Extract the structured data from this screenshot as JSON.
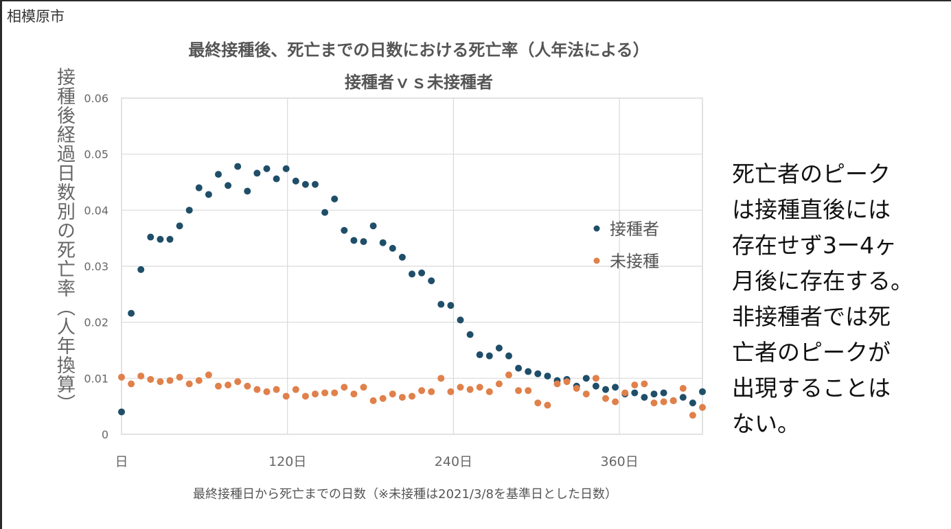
{
  "source_label": "相模原市",
  "note": "死亡者のピーク\nは接種直後には\n存在せず3ー4ヶ\n月後に存在する。\n非接種者では死\n亡者のピークが\n出現することは\nない。",
  "colors": {
    "vaccinated": "#1f4e69",
    "unvaccinated": "#e0804a",
    "grid": "#d9d9d9",
    "axis_text": "#666666"
  },
  "chart_data": {
    "type": "scatter",
    "title": "最終接種後、死亡までの日数における死亡率（人年法による）",
    "subtitle": "接種者ｖｓ未接種者",
    "ylabel": "接種後経過日数別の死亡率（人年換算）",
    "xlabel": "最終接種日から死亡までの日数（※未接種は2021/3/8を基準日とした日数）",
    "xlim": [
      0,
      420
    ],
    "ylim": [
      0,
      0.06
    ],
    "xticks": [
      {
        "value": 0,
        "label": "日"
      },
      {
        "value": 120,
        "label": "120日"
      },
      {
        "value": 240,
        "label": "240日"
      },
      {
        "value": 360,
        "label": "360日"
      }
    ],
    "yticks": [
      {
        "value": 0,
        "label": "0"
      },
      {
        "value": 0.01,
        "label": "0.01"
      },
      {
        "value": 0.02,
        "label": "0.02"
      },
      {
        "value": 0.03,
        "label": "0.03"
      },
      {
        "value": 0.04,
        "label": "0.04"
      },
      {
        "value": 0.05,
        "label": "0.05"
      },
      {
        "value": 0.06,
        "label": "0.06"
      }
    ],
    "grid": true,
    "legend_position": "right",
    "series": [
      {
        "name": "接種者",
        "color": "#1f4e69",
        "x": [
          0,
          7,
          14,
          21,
          28,
          35,
          42,
          49,
          56,
          63,
          70,
          77,
          84,
          91,
          98,
          105,
          112,
          119,
          126,
          133,
          140,
          147,
          154,
          161,
          168,
          175,
          182,
          189,
          196,
          203,
          210,
          217,
          224,
          231,
          238,
          245,
          252,
          259,
          266,
          273,
          280,
          287,
          294,
          301,
          308,
          315,
          322,
          329,
          336,
          343,
          350,
          357,
          364,
          371,
          378,
          385,
          392,
          399,
          406,
          413,
          420
        ],
        "y": [
          0.004,
          0.0216,
          0.0294,
          0.0352,
          0.0348,
          0.0348,
          0.0372,
          0.04,
          0.044,
          0.0428,
          0.0464,
          0.0444,
          0.0478,
          0.0434,
          0.0466,
          0.0474,
          0.0456,
          0.0474,
          0.0452,
          0.0446,
          0.0446,
          0.0396,
          0.042,
          0.0364,
          0.0346,
          0.0344,
          0.0372,
          0.0342,
          0.0332,
          0.0316,
          0.0286,
          0.0288,
          0.0274,
          0.0232,
          0.023,
          0.0204,
          0.0178,
          0.0142,
          0.014,
          0.0154,
          0.014,
          0.0118,
          0.0112,
          0.0108,
          0.0104,
          0.0096,
          0.0098,
          0.0086,
          0.01,
          0.0086,
          0.008,
          0.0084,
          0.0072,
          0.0074,
          0.0066,
          0.0072,
          0.0074,
          0.006,
          0.0066,
          0.0056,
          0.0076
        ]
      },
      {
        "name": "未接種",
        "color": "#e0804a",
        "x": [
          0,
          7,
          14,
          21,
          28,
          35,
          42,
          49,
          56,
          63,
          70,
          77,
          84,
          91,
          98,
          105,
          112,
          119,
          126,
          133,
          140,
          147,
          154,
          161,
          168,
          175,
          182,
          189,
          196,
          203,
          210,
          217,
          224,
          231,
          238,
          245,
          252,
          259,
          266,
          273,
          280,
          287,
          294,
          301,
          308,
          315,
          322,
          329,
          336,
          343,
          350,
          357,
          364,
          371,
          378,
          385,
          392,
          399,
          406,
          413,
          420
        ],
        "y": [
          0.0102,
          0.009,
          0.0104,
          0.0098,
          0.0094,
          0.0096,
          0.0102,
          0.009,
          0.0096,
          0.0106,
          0.0086,
          0.0088,
          0.0094,
          0.0086,
          0.008,
          0.0076,
          0.008,
          0.0068,
          0.008,
          0.0068,
          0.0072,
          0.0074,
          0.0074,
          0.0084,
          0.0072,
          0.0084,
          0.006,
          0.0064,
          0.0072,
          0.0066,
          0.0068,
          0.0078,
          0.0076,
          0.01,
          0.0076,
          0.0084,
          0.008,
          0.0084,
          0.0076,
          0.009,
          0.0106,
          0.0078,
          0.0078,
          0.0056,
          0.0052,
          0.009,
          0.0094,
          0.0082,
          0.0072,
          0.01,
          0.0064,
          0.0058,
          0.0074,
          0.0088,
          0.009,
          0.0056,
          0.0058,
          0.006,
          0.0082,
          0.0034,
          0.0048
        ]
      }
    ]
  }
}
